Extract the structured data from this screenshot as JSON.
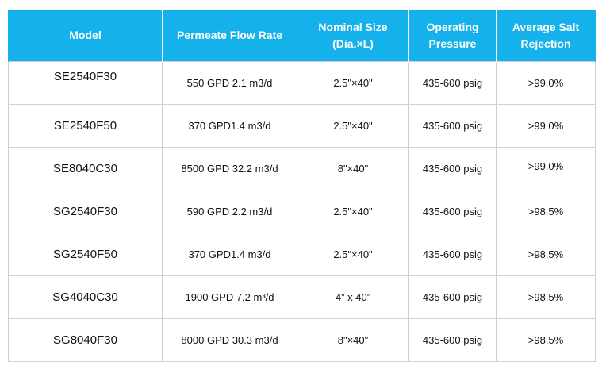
{
  "table": {
    "headers": [
      "Model",
      "Permeate Flow Rate",
      "Nominal Size (Dia.×L)",
      "Operating Pressure",
      "Average Salt Rejection"
    ],
    "rows": [
      [
        "SE2540F30",
        "550 GPD 2.1 m3/d",
        "2.5\"×40\"",
        "435-600 psig",
        ">99.0%"
      ],
      [
        "SE2540F50",
        "370 GPD1.4 m3/d",
        "2.5\"×40\"",
        "435-600 psig",
        ">99.0%"
      ],
      [
        "SE8040C30",
        "8500 GPD 32.2 m3/d",
        "8\"×40\"",
        "435-600 psig",
        ">99.0%"
      ],
      [
        "SG2540F30",
        "590 GPD 2.2 m3/d",
        "2.5\"×40\"",
        "435-600 psig",
        ">98.5%"
      ],
      [
        "SG2540F50",
        "370 GPD1.4 m3/d",
        "2.5\"×40\"",
        "435-600 psig",
        ">98.5%"
      ],
      [
        "SG4040C30",
        "1900 GPD 7.2 m³/d",
        "4” x 40”",
        "435-600 psig",
        ">98.5%"
      ],
      [
        "SG8040F30",
        "8000 GPD 30.3 m3/d",
        "8\"×40\"",
        "435-600 psig",
        ">98.5%"
      ]
    ]
  },
  "colors": {
    "header_bg": "#14b1ea",
    "header_text": "#ffffff",
    "grid": "#cfcfcf"
  }
}
